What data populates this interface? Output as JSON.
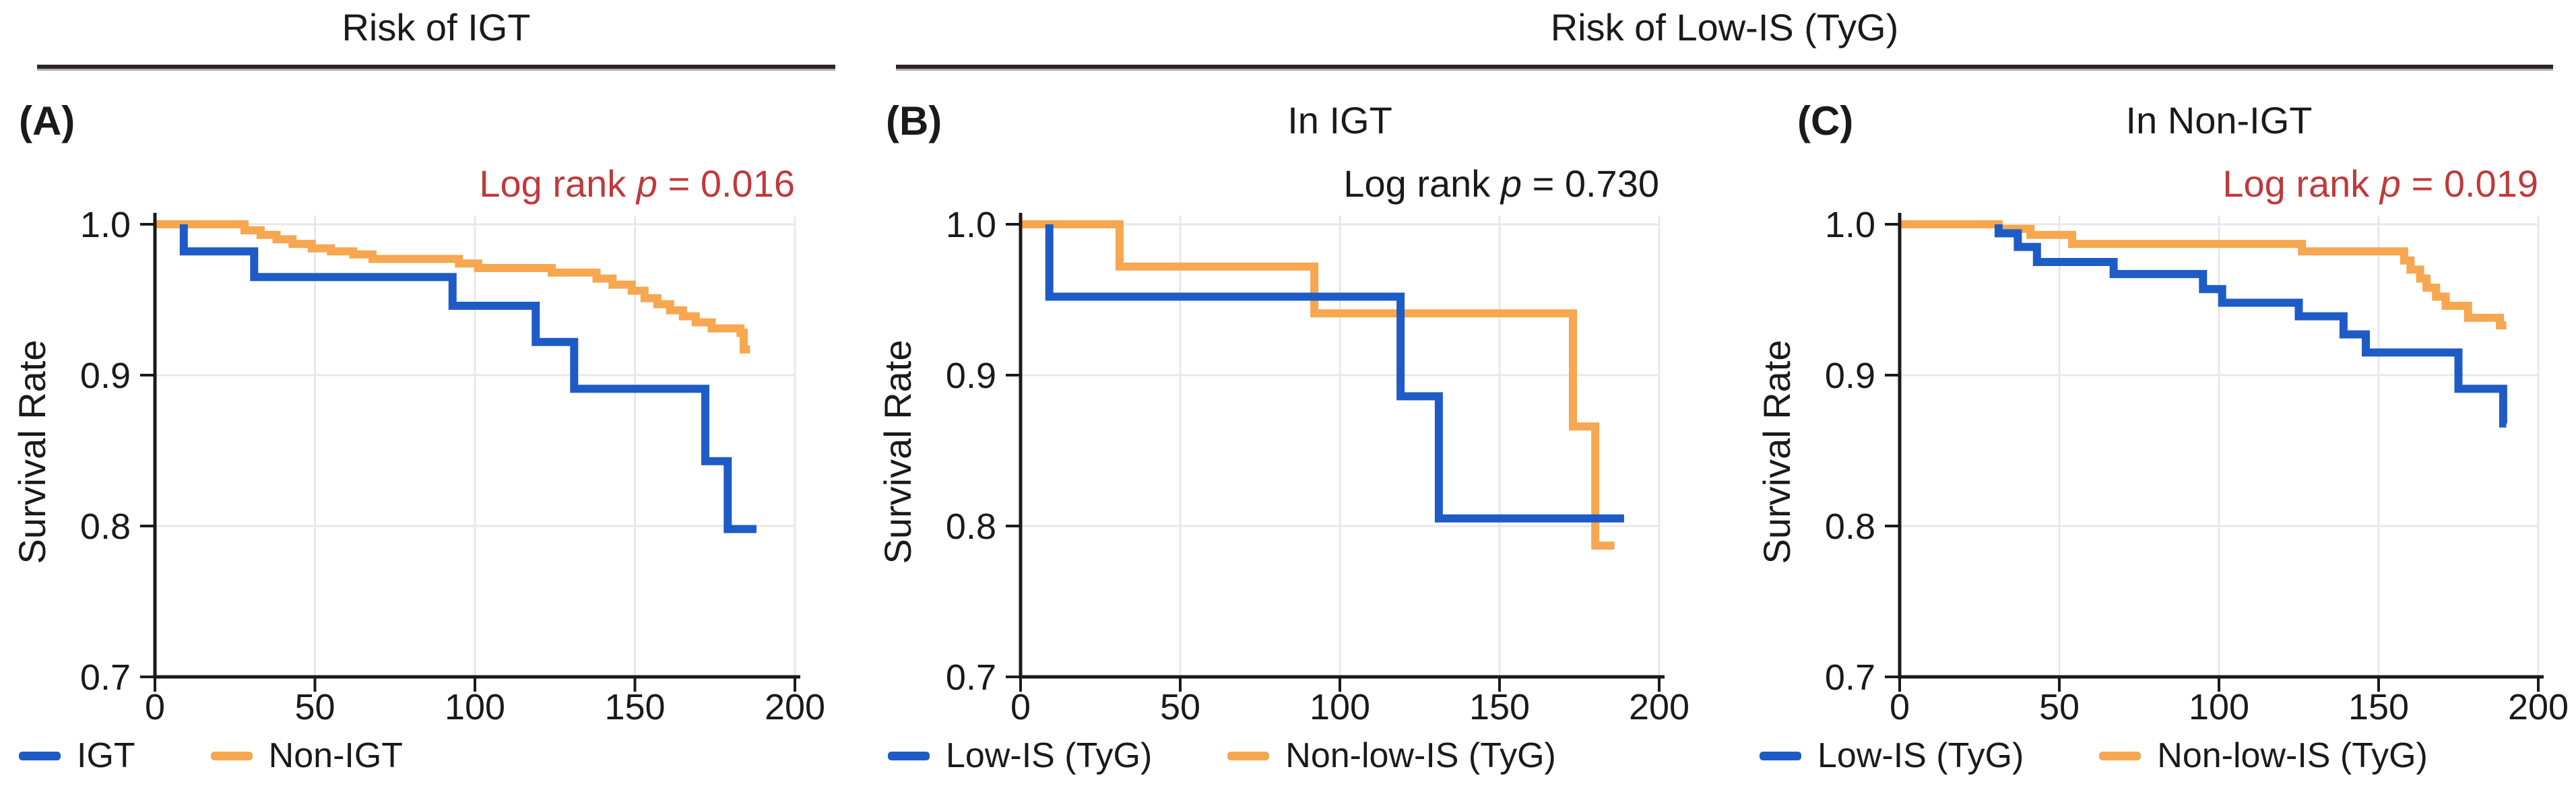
{
  "figure": {
    "headers": [
      {
        "title": "Risk of IGT"
      },
      {
        "title": "Risk of Low-IS (TyG)"
      }
    ],
    "colors": {
      "blue": "#1e5bc6",
      "orange": "#f6a750",
      "red": "#bf3a3c",
      "black": "#1a1a1a",
      "grid": "#e8e8e8",
      "spine": "#1a1a1a",
      "rule_dark": "#2b2526",
      "rule_light": "#b5adad"
    }
  },
  "panels": [
    {
      "letter": "(A)",
      "subtitle": "",
      "ylabel": "Survival Rate",
      "log_rank": {
        "prefix": "Log rank ",
        "p": "p",
        "rest": " = 0.016",
        "color": "red"
      },
      "legend": [
        {
          "label": "IGT",
          "color": "blue"
        },
        {
          "label": "Non-IGT",
          "color": "orange"
        }
      ]
    },
    {
      "letter": "(B)",
      "subtitle": "In IGT",
      "ylabel": "Survival Rate",
      "log_rank": {
        "prefix": "Log rank ",
        "p": "p",
        "rest": " = 0.730",
        "color": "black"
      },
      "legend": [
        {
          "label": "Low-IS (TyG)",
          "color": "blue"
        },
        {
          "label": "Non-low-IS (TyG)",
          "color": "orange"
        }
      ]
    },
    {
      "letter": "(C)",
      "subtitle": "In Non-IGT",
      "ylabel": "Survival Rate",
      "log_rank": {
        "prefix": "Log rank ",
        "p": "p",
        "rest": " = 0.019",
        "color": "red"
      },
      "legend": [
        {
          "label": "Low-IS (TyG)",
          "color": "blue"
        },
        {
          "label": "Non-low-IS (TyG)",
          "color": "orange"
        }
      ]
    }
  ],
  "chart_data": [
    {
      "type": "line",
      "panel": "A",
      "title": "Risk of IGT",
      "xlabel": "",
      "ylabel": "Survival Rate",
      "xlim": [
        0,
        200
      ],
      "ylim": [
        0.7,
        1.0
      ],
      "x_ticks": [
        0,
        50,
        100,
        150,
        200
      ],
      "y_ticks": [
        1.0,
        0.9,
        0.8,
        0.7
      ],
      "y_tick_labels": [
        "1.0",
        "0.9",
        "0.8",
        "0.7"
      ],
      "grid": true,
      "legend_position": "bottom",
      "log_rank_p": "0.016",
      "series": [
        {
          "name": "Non-IGT",
          "color": "orange",
          "start_t": 0,
          "end_t": 186,
          "drops": [
            [
              28,
              0.996
            ],
            [
              33,
              0.993
            ],
            [
              38,
              0.99
            ],
            [
              43,
              0.987
            ],
            [
              49,
              0.984
            ],
            [
              55,
              0.982
            ],
            [
              62,
              0.98
            ],
            [
              68,
              0.977
            ],
            [
              95,
              0.974
            ],
            [
              101,
              0.971
            ],
            [
              124,
              0.968
            ],
            [
              138,
              0.964
            ],
            [
              143,
              0.96
            ],
            [
              149,
              0.956
            ],
            [
              153,
              0.951
            ],
            [
              157,
              0.947
            ],
            [
              161,
              0.943
            ],
            [
              165,
              0.939
            ],
            [
              169,
              0.935
            ],
            [
              174,
              0.931
            ],
            [
              183,
              0.928
            ],
            [
              184,
              0.917
            ]
          ]
        },
        {
          "name": "IGT",
          "color": "blue",
          "start_t": 9,
          "end_t": 188,
          "drops": [
            [
              9,
              0.982
            ],
            [
              31,
              0.965
            ],
            [
              93,
              0.946
            ],
            [
              119,
              0.922
            ],
            [
              131,
              0.891
            ],
            [
              172,
              0.843
            ],
            [
              179,
              0.798
            ]
          ]
        }
      ]
    },
    {
      "type": "line",
      "panel": "B",
      "title": "In IGT",
      "xlabel": "",
      "ylabel": "Survival Rate",
      "xlim": [
        0,
        200
      ],
      "ylim": [
        0.7,
        1.0
      ],
      "x_ticks": [
        0,
        50,
        100,
        150,
        200
      ],
      "y_ticks": [
        1.0,
        0.9,
        0.8,
        0.7
      ],
      "y_tick_labels": [
        "1.0",
        "0.9",
        "0.8",
        "0.7"
      ],
      "grid": true,
      "legend_position": "bottom",
      "log_rank_p": "0.730",
      "series": [
        {
          "name": "Non-low-IS (TyG)",
          "color": "orange",
          "start_t": 0,
          "end_t": 186,
          "drops": [
            [
              31,
              0.972
            ],
            [
              92,
              0.941
            ],
            [
              173,
              0.866
            ],
            [
              180,
              0.787
            ]
          ]
        },
        {
          "name": "Low-IS (TyG)",
          "color": "blue",
          "start_t": 9,
          "end_t": 189,
          "drops": [
            [
              9,
              0.952
            ],
            [
              119,
              0.886
            ],
            [
              131,
              0.805
            ]
          ]
        }
      ]
    },
    {
      "type": "line",
      "panel": "C",
      "title": "In Non-IGT",
      "xlabel": "",
      "ylabel": "Survival Rate",
      "xlim": [
        0,
        200
      ],
      "ylim": [
        0.7,
        1.0
      ],
      "x_ticks": [
        0,
        50,
        100,
        150,
        200
      ],
      "y_ticks": [
        1.0,
        0.9,
        0.8,
        0.7
      ],
      "y_tick_labels": [
        "1.0",
        "0.9",
        "0.8",
        "0.7"
      ],
      "grid": true,
      "legend_position": "bottom",
      "log_rank_p": "0.019",
      "series": [
        {
          "name": "Non-low-IS (TyG)",
          "color": "orange",
          "start_t": 0,
          "end_t": 190,
          "drops": [
            [
              31,
              0.997
            ],
            [
              41,
              0.993
            ],
            [
              54,
              0.987
            ],
            [
              126,
              0.982
            ],
            [
              158,
              0.976
            ],
            [
              160,
              0.97
            ],
            [
              163,
              0.964
            ],
            [
              165,
              0.958
            ],
            [
              168,
              0.952
            ],
            [
              171,
              0.946
            ],
            [
              178,
              0.938
            ],
            [
              188,
              0.933
            ]
          ]
        },
        {
          "name": "Low-IS (TyG)",
          "color": "blue",
          "start_t": 31,
          "end_t": 190,
          "drops": [
            [
              31,
              0.994
            ],
            [
              37,
              0.985
            ],
            [
              43,
              0.975
            ],
            [
              67,
              0.967
            ],
            [
              95,
              0.957
            ],
            [
              101,
              0.948
            ],
            [
              125,
              0.939
            ],
            [
              139,
              0.927
            ],
            [
              146,
              0.915
            ],
            [
              175,
              0.891
            ],
            [
              189,
              0.868
            ]
          ]
        }
      ]
    }
  ]
}
